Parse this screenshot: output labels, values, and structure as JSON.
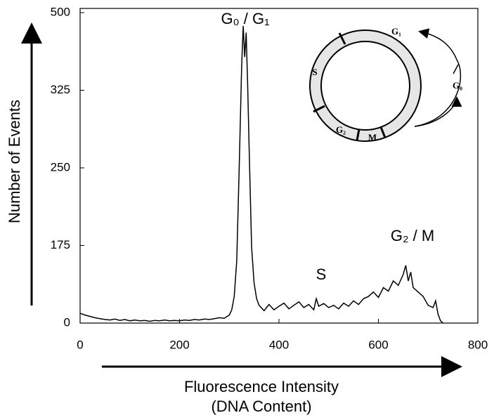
{
  "chart_data": {
    "type": "line",
    "x_label": "Fluorescence Intensity",
    "x_label_2": "(DNA Content)",
    "y_label": "Number of Events",
    "annotations": [
      "G₀ / G₁",
      "S",
      "G₂ / M"
    ],
    "inset": {
      "phases": [
        "G₁",
        "S",
        "G₂",
        "M"
      ],
      "outside": "G₀"
    },
    "color": "#000000",
    "x": [
      0,
      10,
      20,
      30,
      40,
      50,
      60,
      70,
      80,
      90,
      100,
      110,
      120,
      130,
      140,
      150,
      160,
      170,
      180,
      190,
      200,
      210,
      220,
      230,
      240,
      250,
      260,
      270,
      280,
      290,
      300,
      305,
      310,
      315,
      320,
      325,
      328,
      331,
      334,
      337,
      340,
      345,
      350,
      355,
      360,
      370,
      380,
      390,
      400,
      410,
      420,
      430,
      440,
      450,
      460,
      470,
      475,
      480,
      490,
      500,
      510,
      520,
      530,
      540,
      550,
      560,
      570,
      580,
      590,
      600,
      610,
      620,
      630,
      640,
      650,
      655,
      660,
      665,
      670,
      680,
      690,
      700,
      710,
      715,
      720,
      725,
      730
    ],
    "values": [
      22,
      18,
      15,
      12,
      10,
      8,
      7,
      9,
      6,
      8,
      5,
      7,
      5,
      6,
      4,
      6,
      5,
      7,
      5,
      6,
      5,
      7,
      6,
      8,
      7,
      9,
      8,
      10,
      12,
      11,
      18,
      30,
      60,
      140,
      250,
      380,
      470,
      400,
      455,
      340,
      270,
      170,
      90,
      55,
      40,
      28,
      42,
      30,
      38,
      45,
      32,
      40,
      48,
      35,
      42,
      30,
      55,
      38,
      44,
      35,
      40,
      32,
      45,
      38,
      50,
      42,
      55,
      60,
      70,
      58,
      80,
      72,
      95,
      85,
      110,
      130,
      95,
      115,
      80,
      70,
      60,
      40,
      35,
      50,
      20,
      5,
      0
    ],
    "xlim": [
      0,
      800
    ],
    "xticks": [
      0,
      200,
      400,
      600,
      800
    ],
    "ylim": [
      0,
      500
    ],
    "yticks": [
      0,
      175,
      250,
      325,
      500
    ],
    "yscale": "tick-spaced"
  }
}
